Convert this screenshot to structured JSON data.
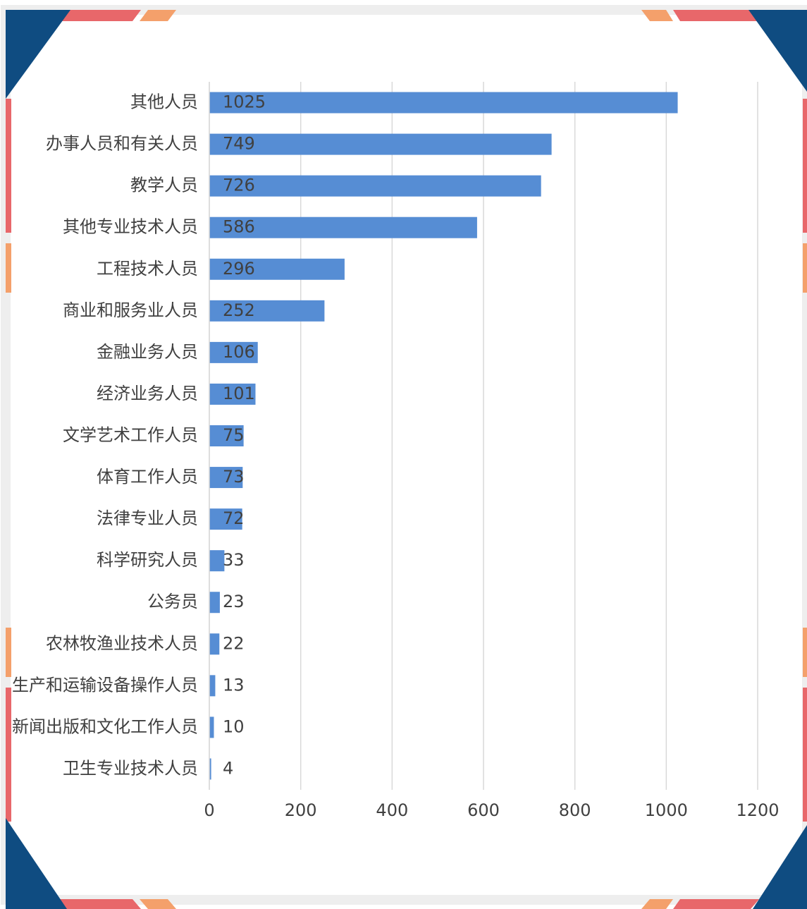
{
  "chart_data": {
    "type": "bar",
    "orientation": "horizontal",
    "categories": [
      "其他人员",
      "办事人员和有关人员",
      "教学人员",
      "其他专业技术人员",
      "工程技术人员",
      "商业和服务业人员",
      "金融业务人员",
      "经济业务人员",
      "文学艺术工作人员",
      "体育工作人员",
      "法律专业人员",
      "科学研究人员",
      "公务员",
      "农林牧渔业技术人员",
      "生产和运输设备操作人员",
      "新闻出版和文化工作人员",
      "卫生专业技术人员"
    ],
    "values": [
      1025,
      749,
      726,
      586,
      296,
      252,
      106,
      101,
      75,
      73,
      72,
      33,
      23,
      22,
      13,
      10,
      4
    ],
    "color": "#568dd4",
    "xlim": [
      0,
      1200
    ],
    "xticks": [
      0,
      200,
      400,
      600,
      800,
      1000,
      1200
    ],
    "grid": true
  }
}
